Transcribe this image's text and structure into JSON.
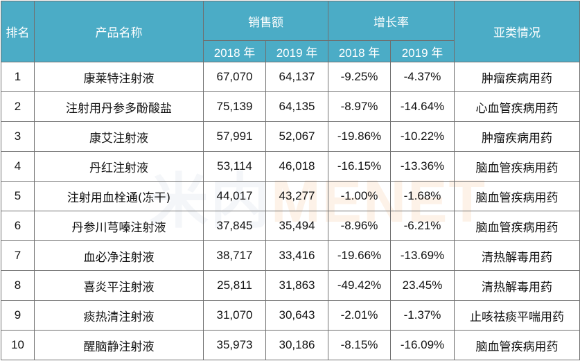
{
  "header": {
    "rank": "排名",
    "product": "产品名称",
    "sales": "销售额",
    "growth": "增长率",
    "category": "亚类情况",
    "year2018": "2018 年",
    "year2019": "2019 年"
  },
  "rows": [
    {
      "rank": "1",
      "product": "康莱特注射液",
      "sales2018": "67,070",
      "sales2019": "64,137",
      "growth2018": "-9.25%",
      "growth2019": "-4.37%",
      "category": "肿瘤疾病用药"
    },
    {
      "rank": "2",
      "product": "注射用丹参多酚酸盐",
      "sales2018": "75,139",
      "sales2019": "64,135",
      "growth2018": "-8.97%",
      "growth2019": "-14.64%",
      "category": "心血管疾病用药"
    },
    {
      "rank": "3",
      "product": "康艾注射液",
      "sales2018": "57,991",
      "sales2019": "52,067",
      "growth2018": "-19.86%",
      "growth2019": "-10.22%",
      "category": "肿瘤疾病用药"
    },
    {
      "rank": "4",
      "product": "丹红注射液",
      "sales2018": "53,114",
      "sales2019": "46,018",
      "growth2018": "-16.15%",
      "growth2019": "-13.36%",
      "category": "脑血管疾病用药"
    },
    {
      "rank": "5",
      "product": "注射用血栓通(冻干)",
      "sales2018": "44,017",
      "sales2019": "43,277",
      "growth2018": "-1.00%",
      "growth2019": "-1.68%",
      "category": "脑血管疾病用药"
    },
    {
      "rank": "6",
      "product": "丹参川芎嗪注射液",
      "sales2018": "37,845",
      "sales2019": "35,494",
      "growth2018": "-8.96%",
      "growth2019": "-6.21%",
      "category": "脑血管疾病用药"
    },
    {
      "rank": "7",
      "product": "血必净注射液",
      "sales2018": "38,717",
      "sales2019": "33,416",
      "growth2018": "-19.66%",
      "growth2019": "-13.69%",
      "category": "清热解毒用药"
    },
    {
      "rank": "8",
      "product": "喜炎平注射液",
      "sales2018": "25,811",
      "sales2019": "31,863",
      "growth2018": "-49.42%",
      "growth2019": "23.45%",
      "category": "清热解毒用药"
    },
    {
      "rank": "9",
      "product": "痰热清注射液",
      "sales2018": "31,070",
      "sales2019": "30,643",
      "growth2018": "-2.01%",
      "growth2019": "-1.37%",
      "category": "止咳祛痰平喘用药"
    },
    {
      "rank": "10",
      "product": "醒脑静注射液",
      "sales2018": "35,973",
      "sales2019": "30,186",
      "growth2018": "-8.15%",
      "growth2019": "-16.09%",
      "category": "脑血管疾病用药"
    }
  ],
  "watermark": {
    "part1": "米内",
    "part2": "MENET"
  },
  "colors": {
    "header_bg": "#4bacc6",
    "header_text": "#ffffff",
    "border": "#6f6f6f"
  }
}
